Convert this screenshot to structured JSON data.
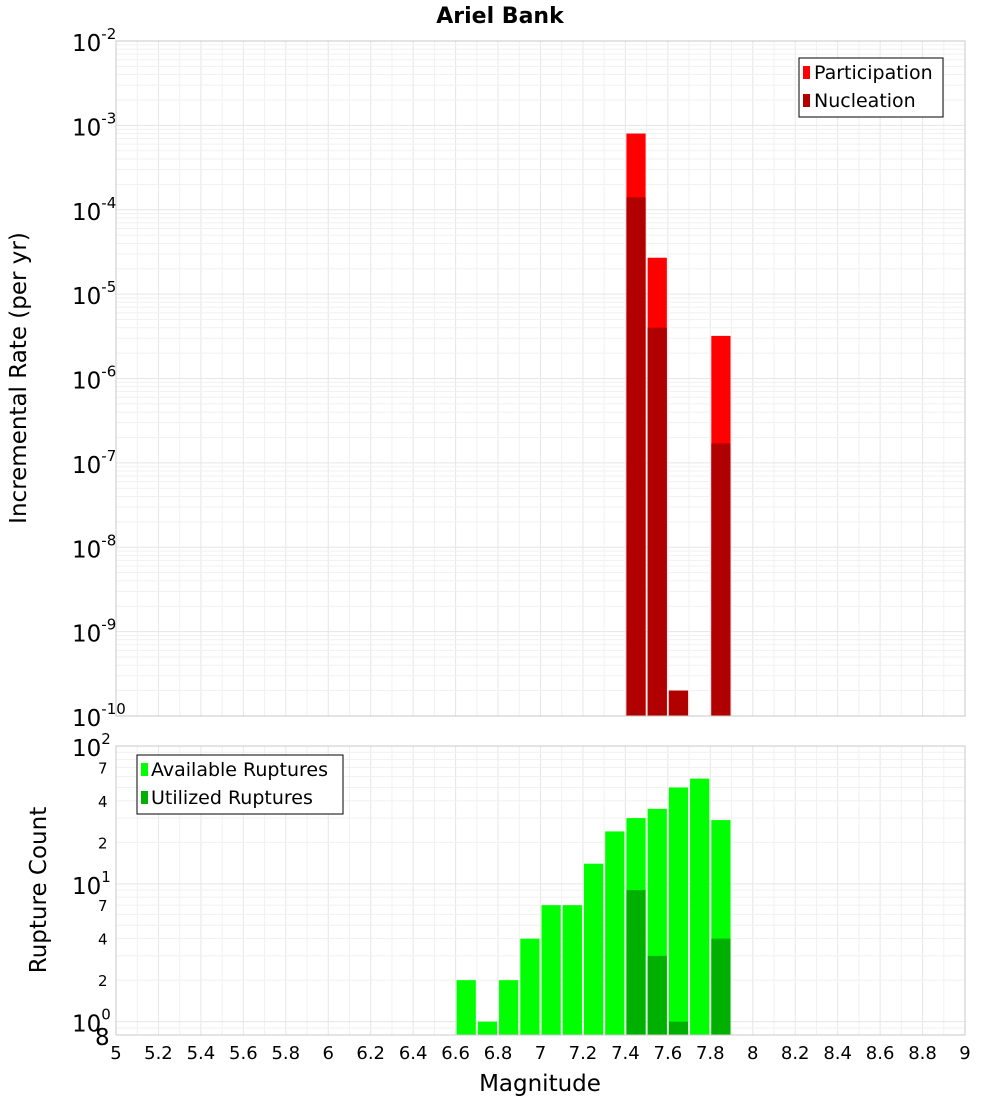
{
  "chart_data": [
    {
      "type": "bar",
      "title": "Ariel Bank",
      "xlabel": "Magnitude",
      "ylabel": "Incremental Rate (per yr)",
      "yscale": "log",
      "ylim": [
        1e-10,
        0.01
      ],
      "xlim": [
        5,
        9
      ],
      "grid": true,
      "legend_position": "top-right",
      "bin_width": 0.1,
      "x": [
        7.45,
        7.55,
        7.65,
        7.85
      ],
      "series": [
        {
          "name": "Participation",
          "color": "#ff0000",
          "values": [
            0.0008,
            2.7e-05,
            2e-10,
            3.2e-06
          ]
        },
        {
          "name": "Nucleation",
          "color": "#b00000",
          "values": [
            0.00014,
            4e-06,
            2e-10,
            1.7e-07
          ]
        }
      ]
    },
    {
      "type": "bar",
      "xlabel": "Magnitude",
      "ylabel": "Rupture Count",
      "yscale": "log",
      "ylim": [
        0.8,
        100
      ],
      "xlim": [
        5,
        9
      ],
      "grid": true,
      "legend_position": "top-left",
      "bin_width": 0.1,
      "x": [
        6.65,
        6.75,
        6.85,
        6.95,
        7.05,
        7.15,
        7.25,
        7.35,
        7.45,
        7.55,
        7.65,
        7.75,
        7.85
      ],
      "series": [
        {
          "name": "Available Ruptures",
          "color": "#00ff00",
          "values": [
            2,
            1,
            2,
            4,
            7,
            7,
            14,
            24,
            30,
            35,
            50,
            58,
            29
          ]
        },
        {
          "name": "Utilized Ruptures",
          "color": "#00b000",
          "values": [
            0,
            0,
            0,
            0,
            0,
            0,
            0,
            0,
            9,
            3,
            1,
            0,
            4
          ]
        }
      ]
    }
  ],
  "x_ticks": [
    "5",
    "5.2",
    "5.4",
    "5.6",
    "5.8",
    "6",
    "6.2",
    "6.4",
    "6.6",
    "6.8",
    "7",
    "7.2",
    "7.4",
    "7.6",
    "7.8",
    "8",
    "8.2",
    "8.4",
    "8.6",
    "8.8",
    "9"
  ],
  "top_y_ticks": [
    {
      "base": "10",
      "exp": "-2"
    },
    {
      "base": "10",
      "exp": "-3"
    },
    {
      "base": "10",
      "exp": "-4"
    },
    {
      "base": "10",
      "exp": "-5"
    },
    {
      "base": "10",
      "exp": "-6"
    },
    {
      "base": "10",
      "exp": "-7"
    },
    {
      "base": "10",
      "exp": "-8"
    },
    {
      "base": "10",
      "exp": "-9"
    },
    {
      "base": "10",
      "exp": "-10"
    }
  ],
  "bottom_y_decades": [
    {
      "base": "10",
      "exp": "2"
    },
    {
      "base": "10",
      "exp": "1"
    },
    {
      "base": "10",
      "exp": "0"
    }
  ],
  "bottom_y_subticks": [
    "7",
    "4",
    "2",
    "7",
    "4",
    "2",
    "8"
  ]
}
